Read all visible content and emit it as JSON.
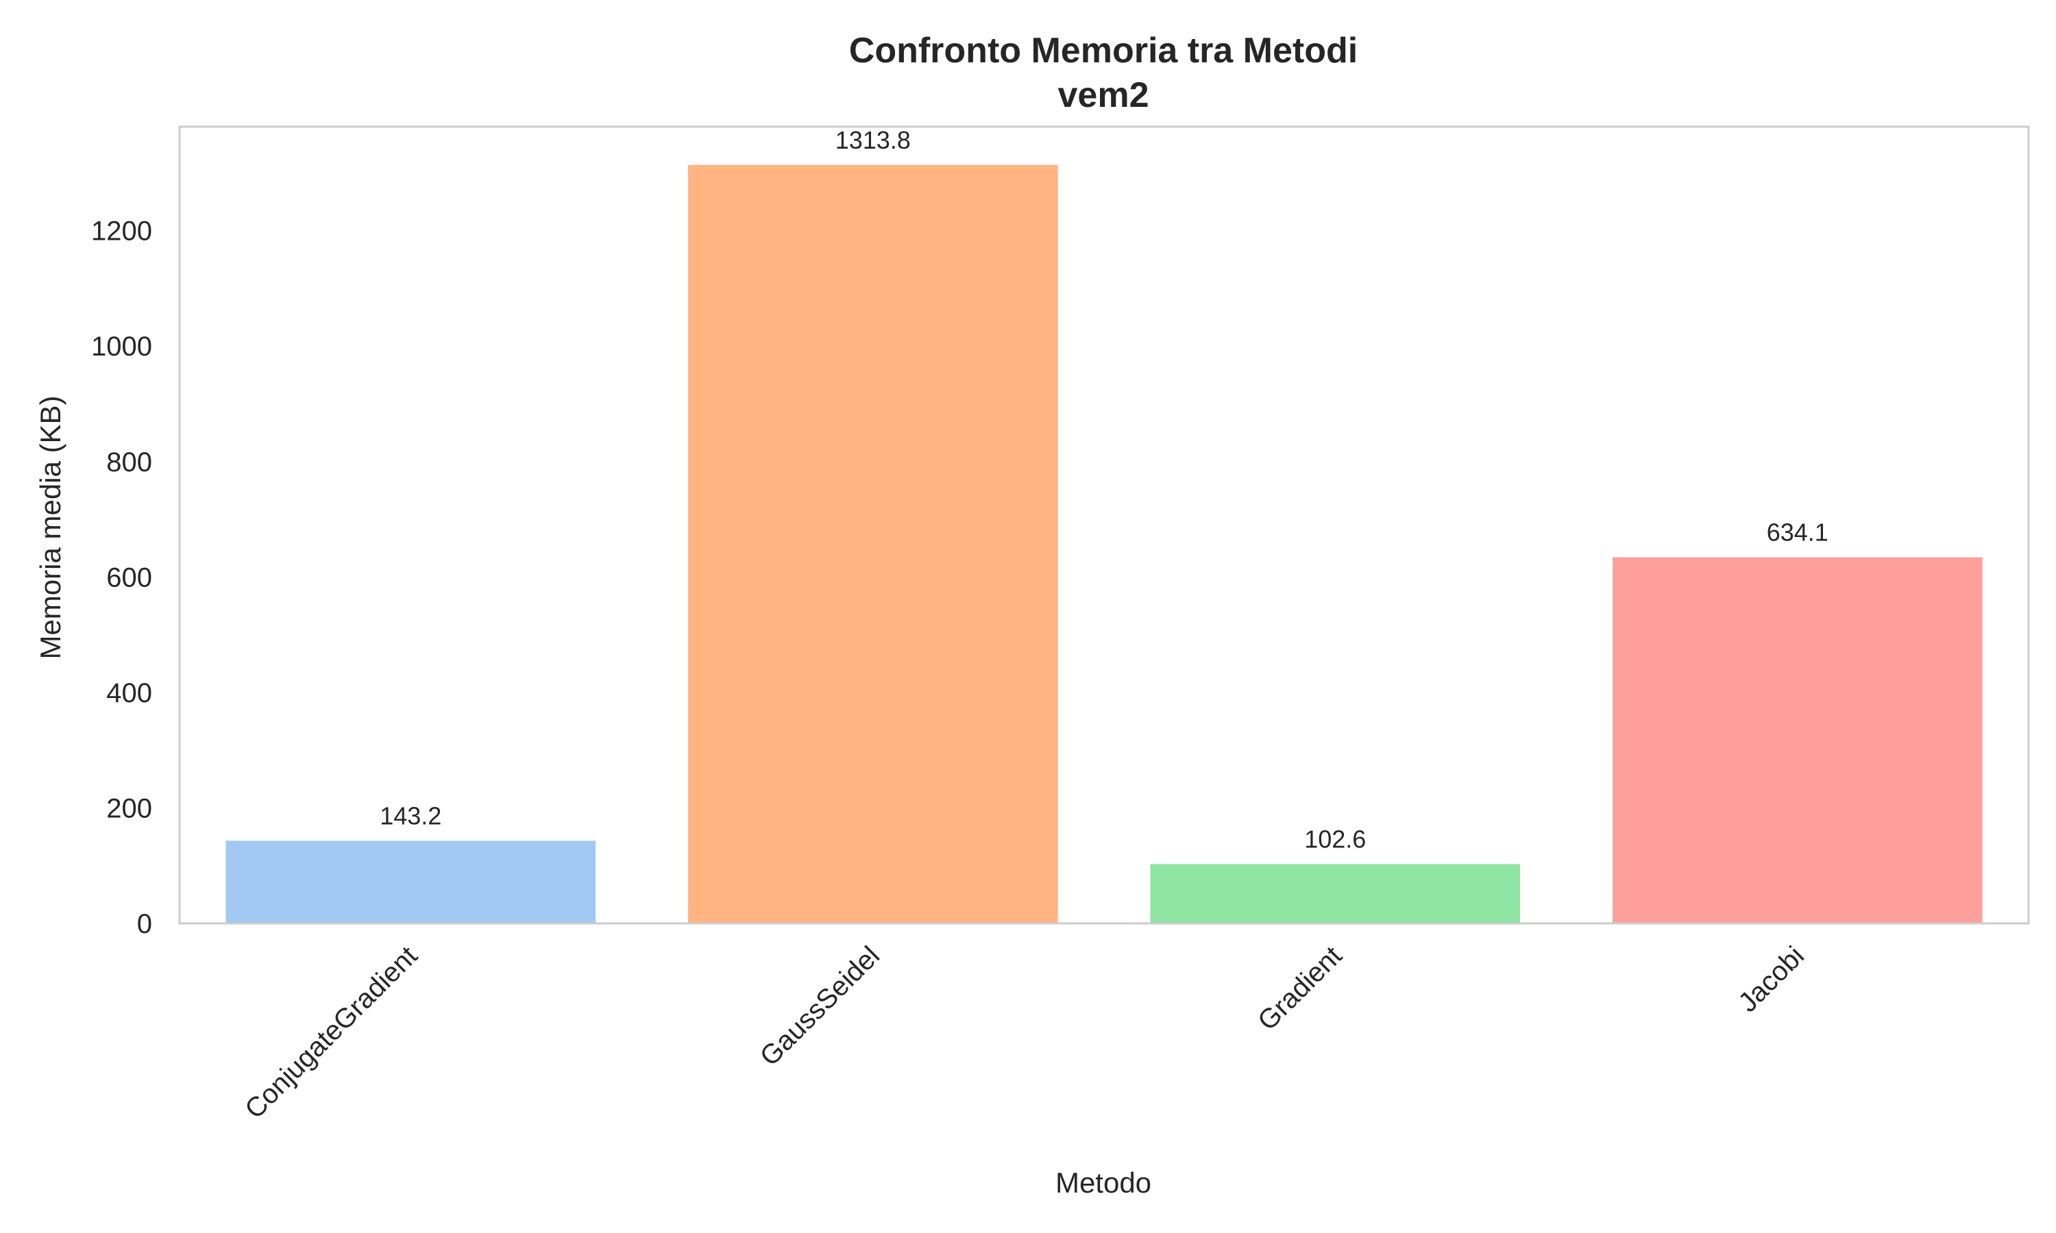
{
  "chart_data": {
    "type": "bar",
    "title": "Confronto Memoria tra Metodi",
    "subtitle": "vem2",
    "xlabel": "Metodo",
    "ylabel": "Memoria media (KB)",
    "categories": [
      "ConjugateGradient",
      "GaussSeidel",
      "Gradient",
      "Jacobi"
    ],
    "values": [
      143.2,
      1313.8,
      102.6,
      634.1
    ],
    "data_labels": [
      "143.2",
      "1313.8",
      "102.6",
      "634.1"
    ],
    "colors": [
      "#a1c9f4",
      "#ffb482",
      "#8de5a1",
      "#ff9f9b"
    ],
    "ylim": [
      0,
      1380
    ],
    "yticks": [
      0,
      200,
      400,
      600,
      800,
      1000,
      1200
    ],
    "grid": false,
    "legend": "none"
  }
}
